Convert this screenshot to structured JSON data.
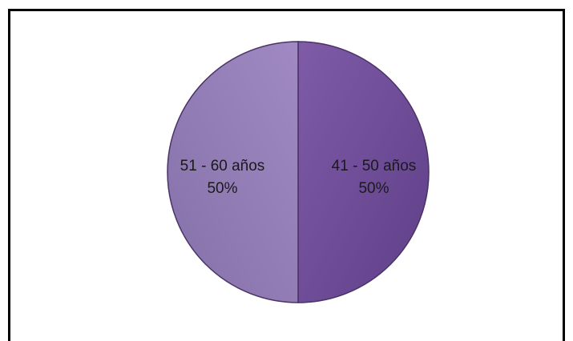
{
  "chart_data": {
    "type": "pie",
    "title": "",
    "categories": [
      "41 - 50 años",
      "51 - 60 años"
    ],
    "values": [
      50,
      50
    ],
    "value_labels": [
      "50%",
      "50%"
    ],
    "colors": [
      "#7f5ba8",
      "#a18ac3"
    ],
    "colors_dark": [
      "#5f3f88",
      "#8470a8"
    ],
    "legend": "none",
    "start_angle": "12 o'clock, clockwise"
  }
}
